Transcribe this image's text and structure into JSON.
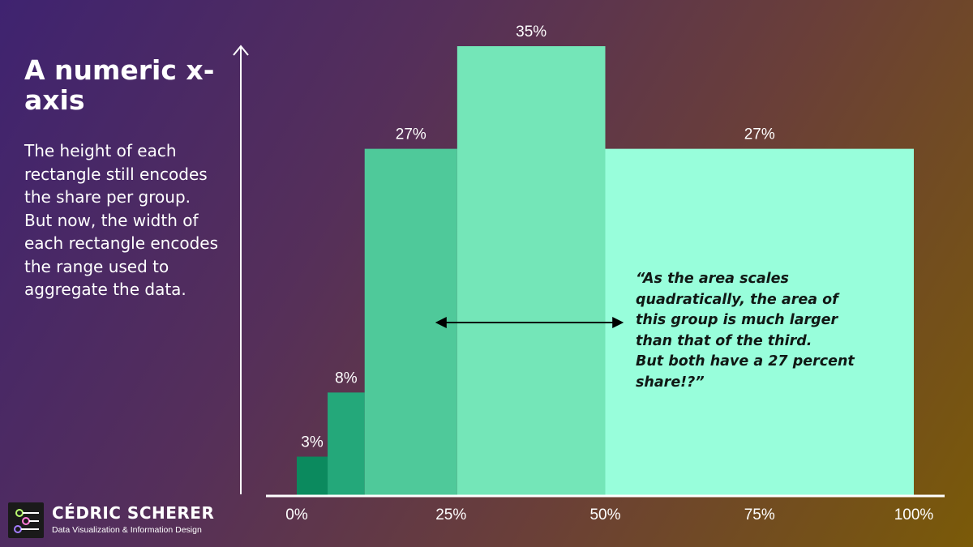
{
  "title": "A numeric x-axis",
  "description": "The height of each rectangle still encodes the share per group. But now, the width of each rectangle encodes the range used to aggregate the data.",
  "annotation": "“As the area scales\n quadratically, the area of\n this group is much larger\n than that of the third.\n But both have a 27 percent\n share!?”",
  "logo": {
    "name": "CÉDRIC SCHERER",
    "tagline": "Data Visualization & Information Design"
  },
  "chart_data": {
    "type": "bar",
    "title": "A numeric x-axis",
    "xlabel": "",
    "ylabel": "",
    "xlim": [
      0,
      100
    ],
    "ylim": [
      0,
      35
    ],
    "x_ticks": [
      0,
      25,
      50,
      75,
      100
    ],
    "x_tick_labels": [
      "0%",
      "25%",
      "50%",
      "75%",
      "100%"
    ],
    "bins": [
      {
        "start": 0,
        "end": 5,
        "value": 3,
        "label": "3%",
        "color": "#0b8a5e"
      },
      {
        "start": 5,
        "end": 11,
        "value": 8,
        "label": "8%",
        "color": "#24a87a"
      },
      {
        "start": 11,
        "end": 26,
        "value": 27,
        "label": "27%",
        "color": "#4fc99a"
      },
      {
        "start": 26,
        "end": 50,
        "value": 35,
        "label": "35%",
        "color": "#74e6b8"
      },
      {
        "start": 50,
        "end": 100,
        "value": 27,
        "label": "27%",
        "color": "#98fedb"
      }
    ],
    "grid": false
  }
}
